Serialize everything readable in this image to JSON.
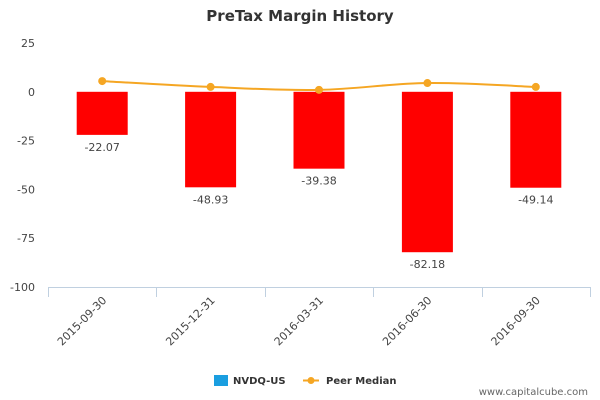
{
  "chart_data": {
    "type": "bar",
    "title": "PreTax Margin History",
    "categories": [
      "2015-09-30",
      "2015-12-31",
      "2016-03-31",
      "2016-06-30",
      "2016-09-30"
    ],
    "series": [
      {
        "name": "NVDQ-US",
        "type": "bar",
        "values": [
          -22.07,
          -48.93,
          -39.38,
          -82.18,
          -49.14
        ],
        "data_labels": [
          "-22.07",
          "-48.93",
          "-39.38",
          "-82.18",
          "-49.14"
        ],
        "bar_color": "#ff0000",
        "legend_color": "#1a9ee0"
      },
      {
        "name": "Peer Median",
        "type": "line",
        "values": [
          5.5,
          2.5,
          1.0,
          4.5,
          2.5
        ],
        "color": "#f5a623"
      }
    ],
    "ylim": [
      -100,
      25
    ],
    "yticks": [
      25,
      0,
      -25,
      -50,
      -75,
      -100
    ],
    "ytick_labels": [
      "25",
      "0",
      "-25",
      "-50",
      "-75",
      "-100"
    ],
    "grid": false,
    "legend_position": "bottom-center"
  },
  "watermark": "www.capitalcube.com"
}
